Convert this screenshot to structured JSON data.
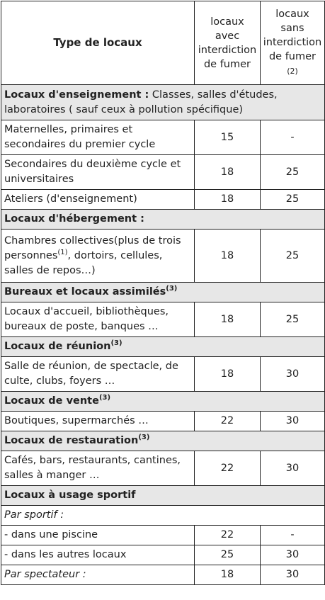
{
  "header": {
    "type": "Type de locaux",
    "col1": [
      "locaux",
      "avec",
      "interdiction",
      "de fumer"
    ],
    "col2": [
      "locaux",
      "sans",
      "interdiction",
      "de fumer"
    ],
    "col2_note": "(2)"
  },
  "sections": {
    "enseignement": {
      "title": "Locaux d'enseignement :",
      "desc": " Classes, salles d'études, laboratoires ( sauf ceux à pollution spécifique)",
      "rows": [
        {
          "label": "Maternelles, primaires et secondaires du premier cycle",
          "v1": "15",
          "v2": "-"
        },
        {
          "label": "Secondaires du deuxième cycle et universitaires",
          "v1": "18",
          "v2": "25"
        },
        {
          "label": "Ateliers (d'enseignement)",
          "v1": "18",
          "v2": "25"
        }
      ]
    },
    "hebergement": {
      "title": "Locaux d'hébergement :",
      "row": {
        "label_a": "Chambres collectives(plus de trois personnes",
        "sup": "(1)",
        "label_b": ", dortoirs, cellules, salles de repos…)",
        "v1": "18",
        "v2": "25"
      }
    },
    "bureaux": {
      "title": "Bureaux et locaux assimilés",
      "sup": "(3)",
      "row": {
        "label": "Locaux d'accueil, bibliothèques, bureaux de poste, banques …",
        "v1": "18",
        "v2": "25"
      }
    },
    "reunion": {
      "title": "Locaux de réunion",
      "sup": "(3)",
      "row": {
        "label": "Salle de réunion, de spectacle, de culte, clubs, foyers …",
        "v1": "18",
        "v2": "30"
      }
    },
    "vente": {
      "title": "Locaux de vente",
      "sup": "(3)",
      "row": {
        "label": "Boutiques, supermarchés …",
        "v1": "22",
        "v2": "30"
      }
    },
    "restauration": {
      "title": "Locaux de restauration",
      "sup": "(3)",
      "row": {
        "label": "Cafés, bars, restaurants, cantines, salles à manger …",
        "v1": "22",
        "v2": "30"
      }
    },
    "sportif": {
      "title": "Locaux à usage sportif",
      "par_sportif": "Par sportif :",
      "rows": [
        {
          "label": "- dans une piscine",
          "v1": "22",
          "v2": "-"
        },
        {
          "label": "- dans les autres locaux",
          "v1": "25",
          "v2": "30"
        }
      ],
      "par_spectateur": {
        "label": "Par spectateur :",
        "v1": "18",
        "v2": "30"
      }
    }
  }
}
